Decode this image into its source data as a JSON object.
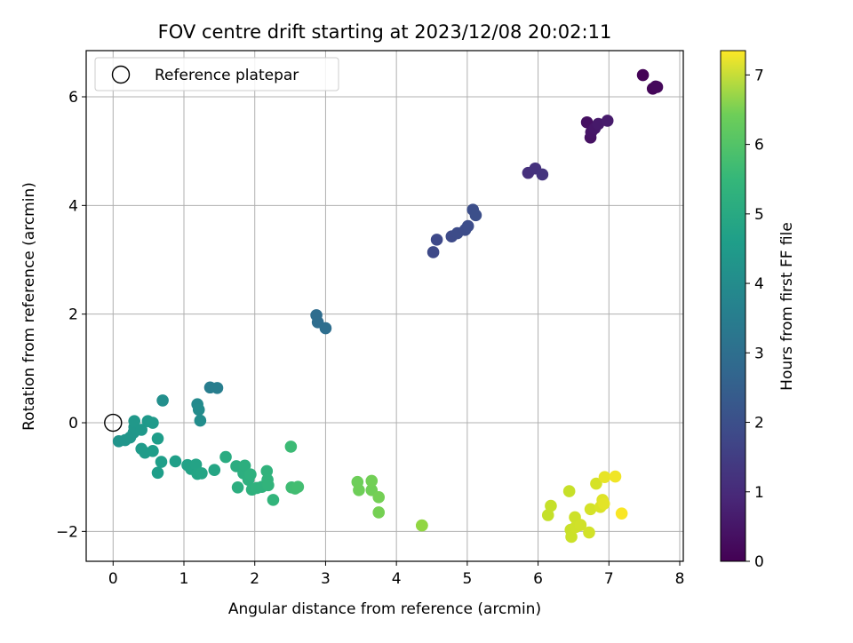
{
  "chart_data": {
    "type": "scatter",
    "title": "FOV centre drift starting at 2023/12/08 20:02:11",
    "xlabel": "Angular distance from reference (arcmin)",
    "ylabel": "Rotation from reference (arcmin)",
    "xlim": [
      -0.38,
      8.05
    ],
    "ylim": [
      -2.55,
      6.85
    ],
    "xticks": [
      0,
      1,
      2,
      3,
      4,
      5,
      6,
      7,
      8
    ],
    "yticks": [
      -2,
      0,
      2,
      4,
      6
    ],
    "grid": true,
    "legend": {
      "placement": "top-left",
      "entries": [
        "Reference platepar"
      ]
    },
    "reference_point": {
      "x": 0,
      "y": 0,
      "label": "Reference platepar"
    },
    "colorbar": {
      "label": "Hours from first FF file",
      "colormap": "viridis",
      "range": [
        0,
        7.35
      ],
      "ticks": [
        0,
        1,
        2,
        3,
        4,
        5,
        6,
        7
      ]
    },
    "points": [
      {
        "x": 7.48,
        "y": 6.4,
        "c": 0.05
      },
      {
        "x": 7.62,
        "y": 6.15,
        "c": 0.1
      },
      {
        "x": 7.66,
        "y": 6.19,
        "c": 0.12
      },
      {
        "x": 7.68,
        "y": 6.18,
        "c": 0.15
      },
      {
        "x": 6.69,
        "y": 5.53,
        "c": 0.3
      },
      {
        "x": 6.74,
        "y": 5.25,
        "c": 0.35
      },
      {
        "x": 6.75,
        "y": 5.35,
        "c": 0.4
      },
      {
        "x": 6.8,
        "y": 5.42,
        "c": 0.45
      },
      {
        "x": 6.85,
        "y": 5.5,
        "c": 0.5
      },
      {
        "x": 6.98,
        "y": 5.56,
        "c": 0.55
      },
      {
        "x": 5.86,
        "y": 4.6,
        "c": 1.0
      },
      {
        "x": 5.96,
        "y": 4.68,
        "c": 1.05
      },
      {
        "x": 6.06,
        "y": 4.57,
        "c": 1.1
      },
      {
        "x": 4.52,
        "y": 3.14,
        "c": 1.6
      },
      {
        "x": 4.57,
        "y": 3.37,
        "c": 1.62
      },
      {
        "x": 4.78,
        "y": 3.43,
        "c": 1.65
      },
      {
        "x": 4.86,
        "y": 3.49,
        "c": 1.68
      },
      {
        "x": 4.97,
        "y": 3.55,
        "c": 1.7
      },
      {
        "x": 5.01,
        "y": 3.62,
        "c": 1.72
      },
      {
        "x": 5.08,
        "y": 3.92,
        "c": 1.75
      },
      {
        "x": 5.12,
        "y": 3.82,
        "c": 1.78
      },
      {
        "x": 2.87,
        "y": 1.98,
        "c": 2.6
      },
      {
        "x": 2.89,
        "y": 1.85,
        "c": 2.62
      },
      {
        "x": 3.0,
        "y": 1.74,
        "c": 2.65
      },
      {
        "x": 1.37,
        "y": 0.65,
        "c": 3.1
      },
      {
        "x": 1.47,
        "y": 0.64,
        "c": 3.15
      },
      {
        "x": 1.19,
        "y": 0.34,
        "c": 3.5
      },
      {
        "x": 1.21,
        "y": 0.24,
        "c": 3.55
      },
      {
        "x": 1.23,
        "y": 0.04,
        "c": 3.6
      },
      {
        "x": 0.7,
        "y": 0.41,
        "c": 3.65
      },
      {
        "x": 0.08,
        "y": -0.34,
        "c": 3.8
      },
      {
        "x": 0.17,
        "y": -0.32,
        "c": 3.82
      },
      {
        "x": 0.24,
        "y": -0.27,
        "c": 3.84
      },
      {
        "x": 0.29,
        "y": -0.18,
        "c": 3.86
      },
      {
        "x": 0.3,
        "y": -0.08,
        "c": 3.88
      },
      {
        "x": 0.3,
        "y": 0.03,
        "c": 3.9
      },
      {
        "x": 0.4,
        "y": -0.13,
        "c": 3.92
      },
      {
        "x": 0.49,
        "y": 0.03,
        "c": 3.94
      },
      {
        "x": 0.56,
        "y": 0.0,
        "c": 3.96
      },
      {
        "x": 0.4,
        "y": -0.48,
        "c": 4.0
      },
      {
        "x": 0.45,
        "y": -0.55,
        "c": 4.02
      },
      {
        "x": 0.56,
        "y": -0.52,
        "c": 4.04
      },
      {
        "x": 0.63,
        "y": -0.29,
        "c": 4.06
      },
      {
        "x": 0.63,
        "y": -0.92,
        "c": 4.08
      },
      {
        "x": 0.68,
        "y": -0.72,
        "c": 4.1
      },
      {
        "x": 0.88,
        "y": -0.71,
        "c": 4.12
      },
      {
        "x": 1.05,
        "y": -0.78,
        "c": 4.2
      },
      {
        "x": 1.1,
        "y": -0.85,
        "c": 4.22
      },
      {
        "x": 1.15,
        "y": -0.85,
        "c": 4.24
      },
      {
        "x": 1.17,
        "y": -0.77,
        "c": 4.26
      },
      {
        "x": 1.19,
        "y": -0.94,
        "c": 4.28
      },
      {
        "x": 1.25,
        "y": -0.93,
        "c": 4.3
      },
      {
        "x": 1.43,
        "y": -0.87,
        "c": 4.32
      },
      {
        "x": 1.59,
        "y": -0.63,
        "c": 4.5
      },
      {
        "x": 1.74,
        "y": -0.8,
        "c": 4.55
      },
      {
        "x": 1.76,
        "y": -1.19,
        "c": 4.58
      },
      {
        "x": 1.84,
        "y": -0.93,
        "c": 4.6
      },
      {
        "x": 1.86,
        "y": -0.79,
        "c": 4.62
      },
      {
        "x": 1.91,
        "y": -1.05,
        "c": 4.64
      },
      {
        "x": 1.94,
        "y": -0.95,
        "c": 4.66
      },
      {
        "x": 1.96,
        "y": -1.23,
        "c": 4.68
      },
      {
        "x": 2.03,
        "y": -1.2,
        "c": 4.7
      },
      {
        "x": 2.1,
        "y": -1.18,
        "c": 4.72
      },
      {
        "x": 2.17,
        "y": -0.89,
        "c": 4.74
      },
      {
        "x": 2.18,
        "y": -1.05,
        "c": 4.76
      },
      {
        "x": 2.19,
        "y": -1.15,
        "c": 4.78
      },
      {
        "x": 2.26,
        "y": -1.42,
        "c": 4.8
      },
      {
        "x": 2.51,
        "y": -0.44,
        "c": 5.0
      },
      {
        "x": 2.52,
        "y": -1.19,
        "c": 5.05
      },
      {
        "x": 2.57,
        "y": -1.21,
        "c": 5.08
      },
      {
        "x": 2.61,
        "y": -1.18,
        "c": 5.1
      },
      {
        "x": 3.45,
        "y": -1.09,
        "c": 5.7
      },
      {
        "x": 3.47,
        "y": -1.24,
        "c": 5.72
      },
      {
        "x": 3.65,
        "y": -1.24,
        "c": 5.74
      },
      {
        "x": 3.65,
        "y": -1.07,
        "c": 5.76
      },
      {
        "x": 3.75,
        "y": -1.37,
        "c": 5.78
      },
      {
        "x": 3.75,
        "y": -1.65,
        "c": 5.8
      },
      {
        "x": 4.36,
        "y": -1.89,
        "c": 6.1
      },
      {
        "x": 4.36,
        "y": -1.89,
        "c": 6.12
      },
      {
        "x": 6.14,
        "y": -1.7,
        "c": 6.7
      },
      {
        "x": 6.18,
        "y": -1.53,
        "c": 6.72
      },
      {
        "x": 6.44,
        "y": -1.26,
        "c": 6.74
      },
      {
        "x": 6.46,
        "y": -1.97,
        "c": 6.76
      },
      {
        "x": 6.47,
        "y": -2.1,
        "c": 6.78
      },
      {
        "x": 6.52,
        "y": -1.74,
        "c": 6.8
      },
      {
        "x": 6.53,
        "y": -1.92,
        "c": 6.82
      },
      {
        "x": 6.6,
        "y": -1.88,
        "c": 6.84
      },
      {
        "x": 6.72,
        "y": -2.02,
        "c": 6.86
      },
      {
        "x": 6.74,
        "y": -1.59,
        "c": 6.88
      },
      {
        "x": 6.82,
        "y": -1.12,
        "c": 6.9
      },
      {
        "x": 6.88,
        "y": -1.55,
        "c": 6.95
      },
      {
        "x": 6.91,
        "y": -1.42,
        "c": 7.0
      },
      {
        "x": 6.93,
        "y": -1.49,
        "c": 7.05
      },
      {
        "x": 6.94,
        "y": -1.0,
        "c": 7.1
      },
      {
        "x": 7.09,
        "y": -0.99,
        "c": 7.2
      },
      {
        "x": 7.18,
        "y": -1.67,
        "c": 7.3
      }
    ]
  }
}
